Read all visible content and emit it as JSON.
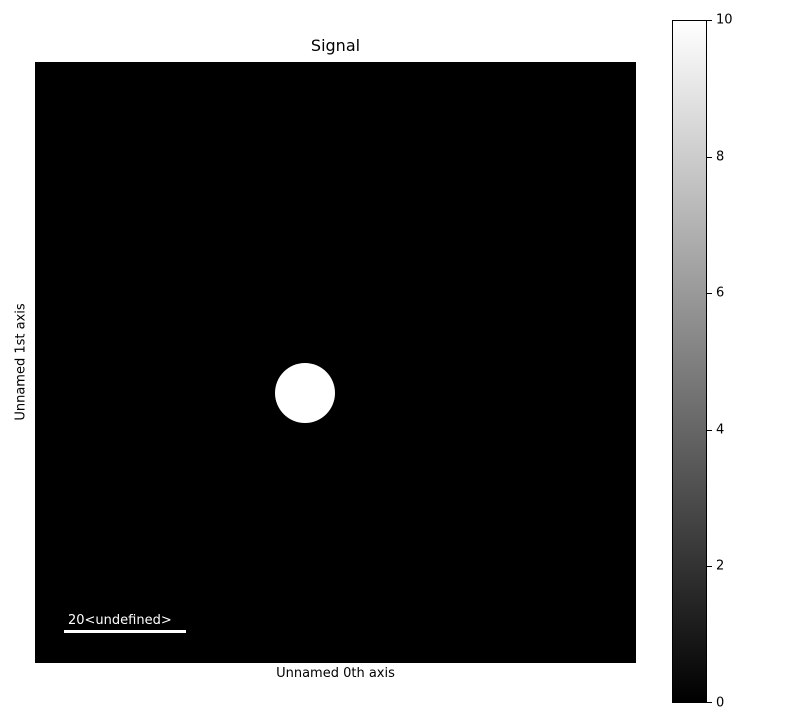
{
  "chart_data": {
    "type": "heatmap",
    "title": "Signal",
    "xlabel": "Unnamed 0th axis",
    "ylabel": "Unnamed 1st axis",
    "colormap": "gray",
    "colorbar": {
      "min": 0,
      "max": 10,
      "ticks": [
        0,
        2,
        4,
        6,
        8,
        10
      ]
    },
    "image": {
      "background_value": 0,
      "grid_size": [
        100,
        100
      ],
      "disk": {
        "center": [
          45,
          55
        ],
        "radius": 5,
        "value": 10
      }
    },
    "scalebar": {
      "length": 20,
      "label": "20<undefined>"
    },
    "colors": {
      "background": "#000000",
      "foreground": "#ffffff"
    }
  }
}
